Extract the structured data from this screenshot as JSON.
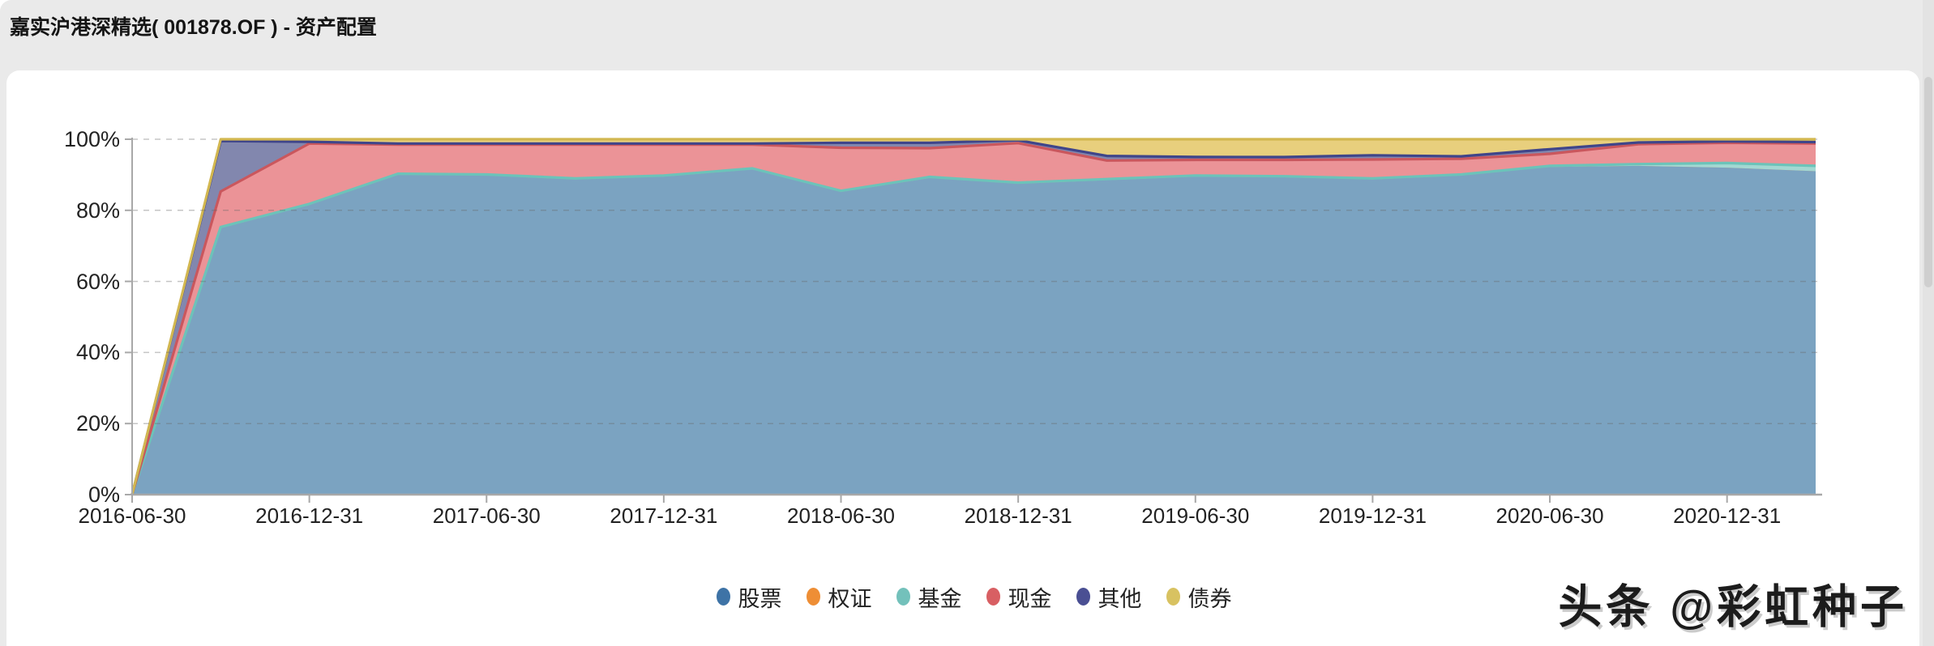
{
  "header": {
    "title": "嘉实沪港深精选( 001878.OF ) - 资产配置"
  },
  "watermark": {
    "text": "头条 @彩虹种子"
  },
  "colors": {
    "page_background": "#eaeaea",
    "card_background": "#ffffff",
    "axis_line": "#a8a8a8",
    "grid_line": "#c6c6c6",
    "axis_text": "#222222",
    "title_text": "#151515"
  },
  "chart_data": {
    "type": "area",
    "stacked": true,
    "unit": "%",
    "title": "资产配置 (asset allocation, % of portfolio)",
    "xlabel": "",
    "ylabel": "",
    "ylim": [
      0,
      100
    ],
    "grid": "horizontal dashed",
    "legend_position": "bottom-center",
    "x": [
      "2016-06-30",
      "2016-09-30",
      "2016-12-31",
      "2017-03-31",
      "2017-06-30",
      "2017-09-30",
      "2017-12-31",
      "2018-03-31",
      "2018-06-30",
      "2018-09-30",
      "2018-12-31",
      "2019-03-31",
      "2019-06-30",
      "2019-09-30",
      "2019-12-31",
      "2020-03-31",
      "2020-06-30",
      "2020-09-30",
      "2020-12-31",
      "2021-03-31"
    ],
    "x_tick_labels": [
      "2016-06-30",
      "2016-12-31",
      "2017-06-30",
      "2017-12-31",
      "2018-06-30",
      "2018-12-31",
      "2019-06-30",
      "2019-12-31",
      "2020-06-30",
      "2020-12-31"
    ],
    "y_tick_labels": [
      "0%",
      "20%",
      "40%",
      "60%",
      "80%",
      "100%"
    ],
    "y_ticks": [
      0,
      20,
      40,
      60,
      80,
      100
    ],
    "series": [
      {
        "name": "股票",
        "legend_color": "#3e73a6",
        "fill": "#7ba3c1",
        "stroke": null,
        "values": [
          0,
          75,
          81.5,
          90,
          89.8,
          88.7,
          89.5,
          91.5,
          85.2,
          89.1,
          87.5,
          88.5,
          89.5,
          89.3,
          88.7,
          89.8,
          92.2,
          92.5,
          92,
          91
        ]
      },
      {
        "name": "权证",
        "legend_color": "#ee8e35",
        "fill": "#f2a95e",
        "stroke": null,
        "values": [
          0,
          0,
          0,
          0,
          0,
          0,
          0,
          0,
          0,
          0,
          0,
          0,
          0,
          0,
          0,
          0,
          0,
          0,
          0,
          0
        ]
      },
      {
        "name": "基金",
        "legend_color": "#73c1bb",
        "fill": "#a3d8d2",
        "stroke": "#6cc3b9",
        "values": [
          0,
          0.3,
          0.3,
          0.3,
          0.3,
          0.3,
          0.3,
          0.3,
          0.3,
          0.3,
          0.3,
          0.3,
          0.3,
          0.3,
          0.3,
          0.3,
          0.3,
          0.5,
          1.3,
          1.5
        ]
      },
      {
        "name": "现金",
        "legend_color": "#d85f63",
        "fill": "#eb9397",
        "stroke": "#ca575d",
        "values": [
          0,
          10,
          17,
          8.2,
          8.4,
          9.5,
          8.7,
          6.7,
          12.1,
          8.1,
          11.1,
          5.2,
          4.4,
          4.6,
          5.3,
          4.4,
          3.4,
          5.6,
          5.7,
          6.3
        ]
      },
      {
        "name": "其他",
        "legend_color": "#4a4f93",
        "fill": "#8287ae",
        "stroke": "#3f458a",
        "values": [
          0,
          14.2,
          0.5,
          0.3,
          0.3,
          0.3,
          0.3,
          0.3,
          1.4,
          1.5,
          0.8,
          1.3,
          0.8,
          0.8,
          1.2,
          0.7,
          1.3,
          0.5,
          0.4,
          0.4
        ]
      },
      {
        "name": "债券",
        "legend_color": "#d8c261",
        "fill": "#e8cf7d",
        "stroke": "#d2b750",
        "values": [
          0,
          0.5,
          0.7,
          1.2,
          1.2,
          1.2,
          1.2,
          1.2,
          1.0,
          1.0,
          0.3,
          4.7,
          5.0,
          5.0,
          4.5,
          4.8,
          2.8,
          0.9,
          0.6,
          0.8
        ]
      }
    ]
  }
}
